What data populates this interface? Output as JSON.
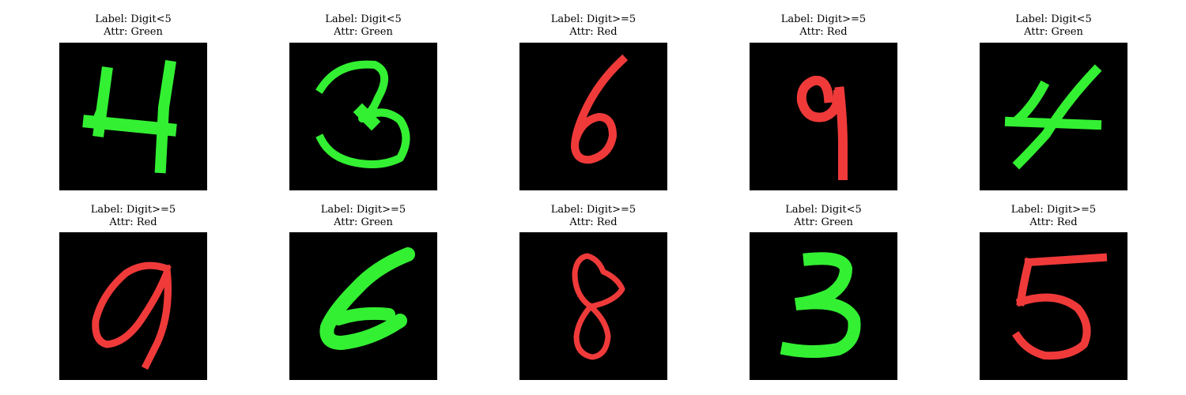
{
  "colors": {
    "green": "#33f033",
    "red": "#f03a3a",
    "background": "#000000"
  },
  "samples": [
    {
      "label": "Label: Digit<5",
      "attr": "Attr: Green",
      "digit": 4,
      "color": "green"
    },
    {
      "label": "Label: Digit<5",
      "attr": "Attr: Green",
      "digit": 3,
      "color": "green"
    },
    {
      "label": "Label: Digit>=5",
      "attr": "Attr: Red",
      "digit": 6,
      "color": "red"
    },
    {
      "label": "Label: Digit>=5",
      "attr": "Attr: Red",
      "digit": 9,
      "color": "red"
    },
    {
      "label": "Label: Digit<5",
      "attr": "Attr: Green",
      "digit": 4,
      "color": "green"
    },
    {
      "label": "Label: Digit>=5",
      "attr": "Attr: Red",
      "digit": 9,
      "color": "red"
    },
    {
      "label": "Label: Digit>=5",
      "attr": "Attr: Green",
      "digit": 6,
      "color": "green"
    },
    {
      "label": "Label: Digit>=5",
      "attr": "Attr: Red",
      "digit": 8,
      "color": "red"
    },
    {
      "label": "Label: Digit<5",
      "attr": "Attr: Green",
      "digit": 3,
      "color": "green"
    },
    {
      "label": "Label: Digit>=5",
      "attr": "Attr: Red",
      "digit": 5,
      "color": "red"
    }
  ]
}
